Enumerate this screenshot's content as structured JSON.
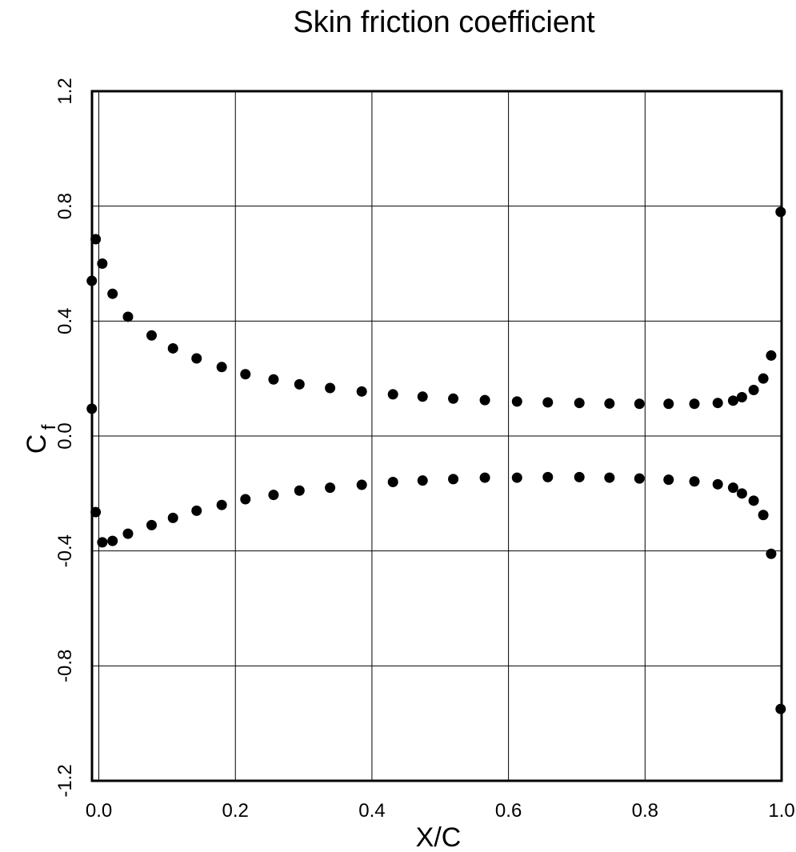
{
  "chart_data": {
    "type": "scatter",
    "title": "Skin friction coefficient",
    "xlabel": "X/C",
    "ylabel_main": "C",
    "ylabel_sub": "f",
    "xlim": [
      -0.01,
      1.0
    ],
    "ylim": [
      -1.2,
      1.2
    ],
    "x_ticks": [
      "0.0",
      "0.2",
      "0.4",
      "0.6",
      "0.8",
      "1.0"
    ],
    "y_ticks": [
      "-1.2",
      "-0.8",
      "-0.4",
      "0.0",
      "0.4",
      "0.8",
      "1.2"
    ],
    "grid": true,
    "series": [
      {
        "x": [
          -0.0103,
          -0.0046,
          -0.0103,
          0.0051,
          0.0201,
          0.0427,
          0.0773,
          0.1086,
          0.1432,
          0.18,
          0.2147,
          0.2559,
          0.2938,
          0.3387,
          0.3851,
          0.4308,
          0.4742,
          0.5191,
          0.5654,
          0.6125,
          0.6576,
          0.7038,
          0.7479,
          0.7918,
          0.8345,
          0.8723,
          0.9065,
          0.929,
          0.9419,
          0.9591,
          0.9732,
          0.9847,
          0.9986
        ],
        "y": [
          0.095,
          0.685,
          0.54,
          0.6,
          0.495,
          0.415,
          0.35,
          0.305,
          0.27,
          0.24,
          0.215,
          0.197,
          0.18,
          0.167,
          0.155,
          0.145,
          0.137,
          0.13,
          0.125,
          0.12,
          0.117,
          0.115,
          0.113,
          0.112,
          0.112,
          0.112,
          0.115,
          0.123,
          0.135,
          0.16,
          0.2,
          0.28,
          0.78
        ]
      },
      {
        "x": [
          -0.0046,
          0.0051,
          0.0201,
          0.0427,
          0.0773,
          0.1086,
          0.1432,
          0.18,
          0.2147,
          0.2559,
          0.2938,
          0.3387,
          0.3851,
          0.4308,
          0.4742,
          0.5191,
          0.5654,
          0.6125,
          0.6576,
          0.7038,
          0.7479,
          0.7918,
          0.8345,
          0.8723,
          0.9065,
          0.929,
          0.9419,
          0.9591,
          0.9732,
          0.9847,
          0.9986
        ],
        "y": [
          -0.265,
          -0.37,
          -0.365,
          -0.34,
          -0.31,
          -0.285,
          -0.26,
          -0.24,
          -0.22,
          -0.205,
          -0.19,
          -0.18,
          -0.17,
          -0.16,
          -0.155,
          -0.15,
          -0.145,
          -0.145,
          -0.143,
          -0.143,
          -0.145,
          -0.148,
          -0.152,
          -0.158,
          -0.168,
          -0.18,
          -0.2,
          -0.225,
          -0.275,
          -0.41,
          -0.95
        ]
      }
    ]
  }
}
